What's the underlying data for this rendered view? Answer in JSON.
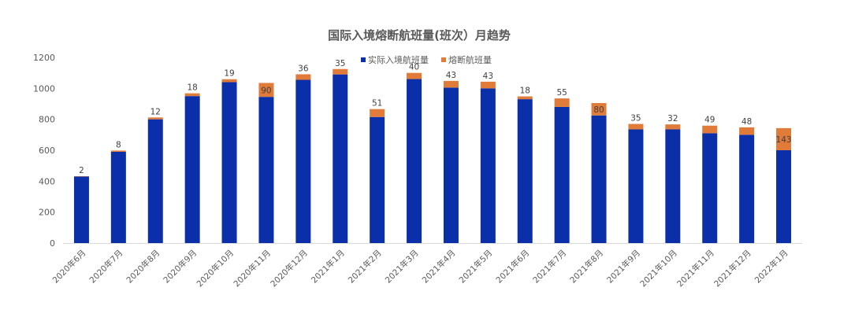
{
  "chart_data": {
    "type": "bar",
    "stacked": true,
    "title": "国际入境熔断航班量(班次）月趋势",
    "xlabel": "",
    "ylabel": "",
    "ylim": [
      0,
      1200
    ],
    "yticks": [
      "0",
      "200",
      "400",
      "600",
      "800",
      "1000",
      "1200"
    ],
    "legend_position": "top-right",
    "grid": false,
    "categories": [
      "2020年6月",
      "2020年7月",
      "2020年8月",
      "2020年9月",
      "2020年10月",
      "2020年11月",
      "2020年12月",
      "2021年1月",
      "2021年2月",
      "2021年3月",
      "2021年4月",
      "2021年5月",
      "2021年6月",
      "2021年7月",
      "2021年8月",
      "2021年9月",
      "2021年10月",
      "2021年11月",
      "2021年12月",
      "2022年1月"
    ],
    "series": [
      {
        "name": "实际入境航班量",
        "color": "#0b2fa8",
        "values": [
          430,
          590,
          800,
          950,
          1040,
          945,
          1055,
          1090,
          815,
          1060,
          1005,
          1000,
          930,
          880,
          825,
          735,
          735,
          710,
          700,
          600
        ]
      },
      {
        "name": "熔断航班量",
        "color": "#e07b39",
        "values": [
          2,
          8,
          12,
          18,
          19,
          90,
          36,
          35,
          51,
          40,
          43,
          43,
          18,
          55,
          80,
          35,
          32,
          49,
          48,
          143
        ]
      }
    ],
    "data_labels": [
      "2",
      "8",
      "12",
      "18",
      "19",
      "90",
      "36",
      "35",
      "51",
      "40",
      "43",
      "43",
      "18",
      "55",
      "80",
      "35",
      "32",
      "49",
      "48",
      "143"
    ]
  }
}
